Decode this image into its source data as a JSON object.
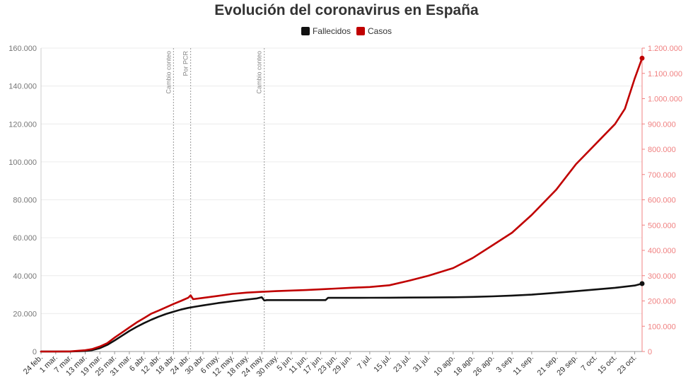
{
  "chart_data": {
    "type": "line",
    "title": "Evolución del coronavirus en España",
    "legend": {
      "placement": "top-center"
    },
    "colors": {
      "fallecidos": "#111111",
      "casos": "#c00000",
      "grid": "#ececec",
      "axis_left": "#999999",
      "axis_right": "#f08080",
      "annotation": "#999999"
    },
    "x_tick_labels": [
      "24 feb.",
      "1 mar.",
      "7 mar.",
      "13 mar.",
      "19 mar.",
      "25 mar.",
      "31 mar.",
      "6 abr.",
      "12 abr.",
      "18 abr.",
      "24 abr.",
      "30 abr.",
      "6 may.",
      "12 may.",
      "18 may.",
      "24 may.",
      "30 may.",
      "5 jun.",
      "11 jun.",
      "17 jun.",
      "23 jun.",
      "29 jun.",
      "7 jul.",
      "15 jul.",
      "23 jul.",
      "31 jul.",
      "10 ago.",
      "18 ago.",
      "26 ago.",
      "3 sep.",
      "11 sep.",
      "21 sep.",
      "29 sep.",
      "7 oct.",
      "15 oct.",
      "23 oct."
    ],
    "y_left": {
      "range": [
        0,
        160000
      ],
      "ticks": [
        "0",
        "20.000",
        "40.000",
        "60.000",
        "80.000",
        "100.000",
        "120.000",
        "140.000",
        "160.000"
      ]
    },
    "y_right": {
      "range": [
        0,
        1200000
      ],
      "ticks": [
        "0",
        "100.000",
        "200.000",
        "300.000",
        "400.000",
        "500.000",
        "600.000",
        "700.000",
        "800.000",
        "900.000",
        "1.000.000",
        "1.100.000",
        "1.200.000"
      ]
    },
    "grid": true,
    "annotations": [
      {
        "label": "Cambio conteo",
        "x": "18 abr."
      },
      {
        "label": "Por PCR",
        "x": "25 abr."
      },
      {
        "label": "Cambio conteo",
        "x": "25 may."
      }
    ],
    "series": [
      {
        "name": "Fallecidos",
        "axis": "left",
        "x": [
          "24 feb.",
          "1 mar.",
          "7 mar.",
          "13 mar.",
          "16 mar.",
          "19 mar.",
          "22 mar.",
          "25 mar.",
          "28 mar.",
          "31 mar.",
          "3 abr.",
          "6 abr.",
          "9 abr.",
          "12 abr.",
          "15 abr.",
          "18 abr.",
          "21 abr.",
          "24 abr.",
          "27 abr.",
          "30 abr.",
          "6 may.",
          "12 may.",
          "18 may.",
          "22 may.",
          "24 may.",
          "25 may.",
          "26 may.",
          "30 may.",
          "5 jun.",
          "11 jun.",
          "17 jun.",
          "19 jun.",
          "20 jun.",
          "23 jun.",
          "29 jun.",
          "7 jul.",
          "15 jul.",
          "23 jul.",
          "31 jul.",
          "10 ago.",
          "18 ago.",
          "26 ago.",
          "3 sep.",
          "11 sep.",
          "21 sep.",
          "29 sep.",
          "7 oct.",
          "15 oct.",
          "23 oct.",
          "26 oct."
        ],
        "values": [
          0,
          0,
          50,
          300,
          800,
          1800,
          3500,
          5800,
          8300,
          10800,
          13000,
          15000,
          16800,
          18400,
          19800,
          21000,
          22100,
          23000,
          23700,
          24300,
          25500,
          26500,
          27400,
          28000,
          28600,
          26900,
          27100,
          27100,
          27100,
          27100,
          27100,
          27100,
          28300,
          28300,
          28300,
          28350,
          28400,
          28450,
          28500,
          28600,
          28800,
          29100,
          29500,
          30000,
          31000,
          31800,
          32700,
          33600,
          34800,
          35800
        ]
      },
      {
        "name": "Casos",
        "axis": "right",
        "x": [
          "24 feb.",
          "1 mar.",
          "7 mar.",
          "13 mar.",
          "16 mar.",
          "19 mar.",
          "22 mar.",
          "25 mar.",
          "28 mar.",
          "31 mar.",
          "3 abr.",
          "6 abr.",
          "9 abr.",
          "12 abr.",
          "15 abr.",
          "18 abr.",
          "21 abr.",
          "24 abr.",
          "25 abr.",
          "26 abr.",
          "30 abr.",
          "6 may.",
          "12 may.",
          "18 may.",
          "24 may.",
          "30 may.",
          "5 jun.",
          "11 jun.",
          "17 jun.",
          "23 jun.",
          "29 jun.",
          "7 jul.",
          "15 jul.",
          "23 jul.",
          "31 jul.",
          "10 ago.",
          "18 ago.",
          "26 ago.",
          "3 sep.",
          "11 sep.",
          "21 sep.",
          "29 sep.",
          "7 oct.",
          "15 oct.",
          "19 oct.",
          "23 oct.",
          "26 oct."
        ],
        "values": [
          0,
          100,
          500,
          5000,
          10000,
          20000,
          33000,
          55000,
          75000,
          95000,
          115000,
          132000,
          150000,
          162000,
          175000,
          188000,
          200000,
          213000,
          222000,
          207000,
          212000,
          220000,
          228000,
          233000,
          236000,
          239000,
          241000,
          243000,
          246000,
          249000,
          252000,
          255000,
          262000,
          280000,
          300000,
          330000,
          370000,
          420000,
          470000,
          540000,
          640000,
          740000,
          820000,
          900000,
          960000,
          1080000,
          1160000
        ]
      }
    ]
  }
}
